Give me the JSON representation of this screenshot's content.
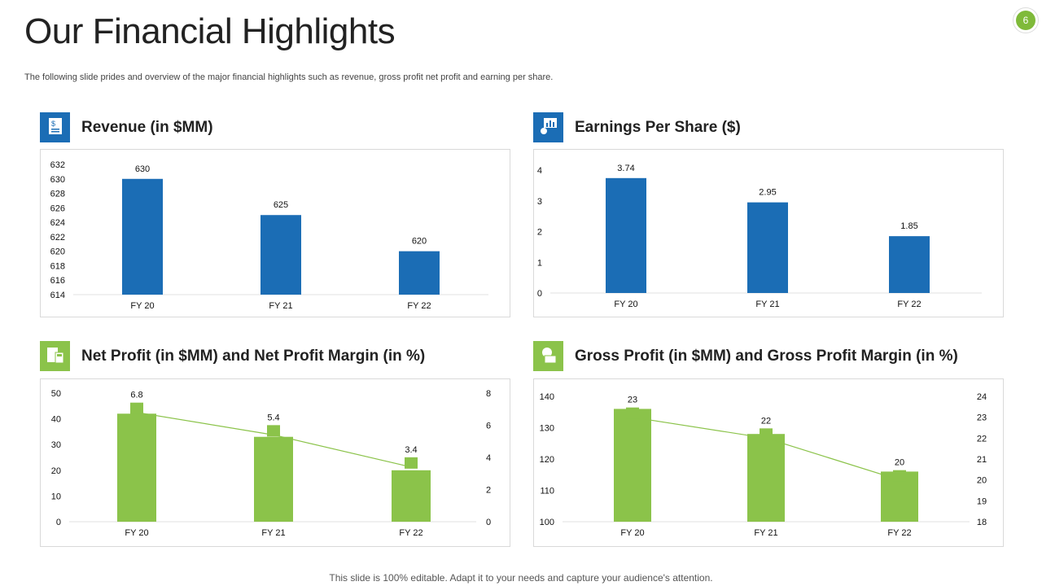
{
  "header": {
    "title": "Our Financial Highlights",
    "subtitle": "The following slide prides and overview of the major financial highlights such as revenue, gross profit net profit and earning per share.",
    "page_number": "6"
  },
  "footer": "This slide is 100% editable. Adapt it to your needs and capture your audience's attention.",
  "colors": {
    "blue": "#1b6db5",
    "green": "#8bc34a",
    "line": "#8bc34a"
  },
  "panels": [
    {
      "title": "Revenue (in $MM)",
      "icon": "document-dollar-icon"
    },
    {
      "title": "Earnings Per Share ($)",
      "icon": "chart-presentation-icon"
    },
    {
      "title": "Net Profit (in $MM) and Net Profit Margin (in %)",
      "icon": "calculator-icon"
    },
    {
      "title": "Gross Profit (in $MM) and Gross Profit Margin (in %)",
      "icon": "cash-register-icon"
    }
  ],
  "chart_data": [
    {
      "type": "bar",
      "title": "Revenue (in $MM)",
      "categories": [
        "FY 20",
        "FY 21",
        "FY 22"
      ],
      "values": [
        630,
        625,
        620
      ],
      "ylim": [
        614,
        632
      ],
      "yticks": [
        614,
        616,
        618,
        620,
        622,
        624,
        626,
        628,
        630,
        632
      ],
      "color": "#1b6db5",
      "data_labels": [
        "630",
        "625",
        "620"
      ]
    },
    {
      "type": "bar",
      "title": "Earnings Per Share ($)",
      "categories": [
        "FY 20",
        "FY 21",
        "FY 22"
      ],
      "values": [
        3.74,
        2.95,
        1.85
      ],
      "ylim": [
        0,
        4
      ],
      "yticks": [
        0,
        1,
        2,
        3,
        4
      ],
      "color": "#1b6db5",
      "data_labels": [
        "3.74",
        "2.95",
        "1.85"
      ]
    },
    {
      "type": "bar+line",
      "title": "Net Profit (in $MM) and Net Profit Margin (in %)",
      "categories": [
        "FY 20",
        "FY 21",
        "FY 22"
      ],
      "bar_values": [
        42,
        33,
        20
      ],
      "line_values": [
        6.8,
        5.4,
        3.4
      ],
      "ylim": [
        0,
        50
      ],
      "yticks": [
        0,
        10,
        20,
        30,
        40,
        50
      ],
      "y2lim": [
        0,
        8
      ],
      "y2ticks": [
        0,
        2,
        4,
        6,
        8
      ],
      "color": "#8bc34a",
      "data_labels": [
        "6.8",
        "5.4",
        "3.4"
      ]
    },
    {
      "type": "bar+line",
      "title": "Gross Profit (in $MM) and Gross Profit Margin (in %)",
      "categories": [
        "FY 20",
        "FY 21",
        "FY 22"
      ],
      "bar_values": [
        136,
        128,
        116
      ],
      "line_values": [
        23,
        22,
        20
      ],
      "ylim": [
        100,
        140
      ],
      "yticks": [
        100,
        110,
        120,
        130,
        140
      ],
      "y2lim": [
        18,
        24
      ],
      "y2ticks": [
        18,
        19,
        20,
        21,
        22,
        23,
        24
      ],
      "color": "#8bc34a",
      "data_labels": [
        "23",
        "22",
        "20"
      ]
    }
  ]
}
